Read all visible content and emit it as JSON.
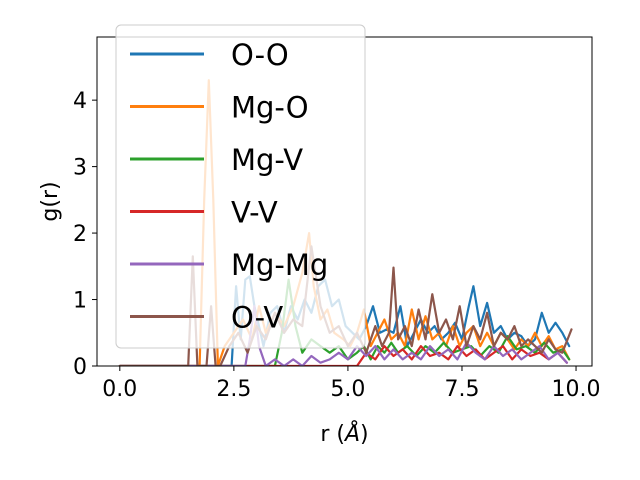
{
  "chart_data": {
    "type": "line",
    "xlabel": "r (",
    "xlabel_unit": "Å",
    "xlabel_close": ")",
    "ylabel": "g(r)",
    "xlim": [
      -0.5,
      10.35
    ],
    "ylim": [
      0,
      4.95
    ],
    "x_ticks": [
      {
        "value": 0.0,
        "label": "0.0"
      },
      {
        "value": 2.5,
        "label": "2.5"
      },
      {
        "value": 5.0,
        "label": "5.0"
      },
      {
        "value": 7.5,
        "label": "7.5"
      },
      {
        "value": 10.0,
        "label": "10.0"
      }
    ],
    "y_ticks": [
      {
        "value": 0,
        "label": "0"
      },
      {
        "value": 1,
        "label": "1"
      },
      {
        "value": 2,
        "label": "2"
      },
      {
        "value": 3,
        "label": "3"
      },
      {
        "value": 4,
        "label": "4"
      }
    ],
    "legend_position": "upper-left",
    "series": [
      {
        "name": "O-O",
        "color": "#1f77b4",
        "x": [
          0.0,
          2.3,
          2.45,
          2.55,
          2.65,
          2.75,
          2.85,
          2.95,
          3.05,
          3.15,
          3.3,
          3.45,
          3.6,
          3.75,
          3.9,
          4.05,
          4.2,
          4.35,
          4.5,
          4.65,
          4.8,
          4.95,
          5.1,
          5.25,
          5.4,
          5.55,
          5.7,
          5.85,
          6.0,
          6.15,
          6.3,
          6.45,
          6.6,
          6.75,
          6.9,
          7.05,
          7.2,
          7.35,
          7.5,
          7.65,
          7.75,
          7.9,
          8.05,
          8.2,
          8.35,
          8.5,
          8.65,
          8.8,
          8.95,
          9.1,
          9.25,
          9.4,
          9.55,
          9.7,
          9.85
        ],
        "y": [
          0,
          0,
          0,
          1.2,
          0.4,
          1.3,
          1.35,
          0.9,
          0.6,
          0.3,
          0.8,
          0.9,
          0.5,
          0.9,
          0.7,
          1.0,
          0.8,
          1.2,
          1.3,
          0.9,
          1.0,
          0.6,
          0.5,
          0.4,
          0.6,
          0.9,
          0.5,
          0.55,
          0.5,
          0.9,
          0.3,
          0.5,
          0.7,
          0.5,
          0.6,
          0.4,
          0.5,
          0.65,
          0.4,
          0.9,
          1.2,
          0.6,
          0.95,
          0.5,
          0.6,
          0.4,
          0.5,
          0.45,
          0.3,
          0.4,
          0.8,
          0.5,
          0.65,
          0.5,
          0.3
        ]
      },
      {
        "name": "Mg-O",
        "color": "#ff7f0e",
        "x": [
          0.0,
          1.75,
          1.85,
          1.95,
          2.05,
          2.15,
          2.3,
          2.5,
          2.7,
          2.9,
          3.05,
          3.2,
          3.4,
          3.6,
          3.8,
          4.0,
          4.15,
          4.25,
          4.4,
          4.55,
          4.7,
          4.9,
          5.05,
          5.2,
          5.35,
          5.5,
          5.65,
          5.8,
          5.95,
          6.1,
          6.25,
          6.4,
          6.55,
          6.7,
          6.85,
          7.0,
          7.15,
          7.3,
          7.45,
          7.6,
          7.75,
          7.9,
          8.05,
          8.2,
          8.35,
          8.5,
          8.65,
          8.8,
          8.95,
          9.1,
          9.25,
          9.4,
          9.55,
          9.7,
          9.85
        ],
        "y": [
          0,
          0,
          2.5,
          4.3,
          2.5,
          0,
          0.3,
          0.5,
          0.7,
          0.4,
          0.9,
          0.5,
          0.8,
          0.6,
          0.9,
          1.4,
          2.0,
          1.2,
          0.7,
          0.85,
          0.5,
          0.4,
          0.3,
          0.5,
          0.85,
          0.3,
          0.5,
          0.7,
          0.4,
          0.5,
          0.3,
          0.85,
          0.4,
          0.75,
          0.4,
          0.5,
          0.3,
          0.6,
          0.3,
          0.5,
          0.6,
          0.3,
          0.5,
          0.3,
          0.5,
          0.4,
          0.25,
          0.4,
          0.3,
          0.5,
          0.3,
          0.45,
          0.25,
          0.3,
          0.1
        ]
      },
      {
        "name": "Mg-V",
        "color": "#2ca02c",
        "x": [
          0.0,
          3.4,
          3.55,
          3.7,
          3.85,
          4.0,
          4.2,
          4.4,
          4.6,
          4.8,
          5.0,
          5.2,
          5.35,
          5.5,
          5.65,
          5.8,
          5.95,
          6.1,
          6.3,
          6.5,
          6.7,
          6.9,
          7.1,
          7.3,
          7.5,
          7.7,
          7.9,
          8.1,
          8.3,
          8.5,
          8.7,
          8.9,
          9.1,
          9.3,
          9.5,
          9.7,
          9.85
        ],
        "y": [
          0,
          0,
          0.5,
          1.3,
          0.6,
          0.2,
          0.4,
          0.3,
          0.2,
          0.3,
          0.1,
          0.2,
          0.3,
          0.1,
          0.3,
          0.2,
          0.35,
          0.2,
          0.3,
          0.15,
          0.3,
          0.2,
          0.35,
          0.2,
          0.25,
          0.3,
          0.15,
          0.3,
          0.2,
          0.45,
          0.25,
          0.3,
          0.2,
          0.35,
          0.2,
          0.25,
          0.1
        ]
      },
      {
        "name": "V-V",
        "color": "#d62728",
        "x": [
          0.0,
          5.2,
          5.4,
          5.6,
          5.8,
          6.0,
          6.2,
          6.4,
          6.6,
          6.8,
          7.0,
          7.2,
          7.4,
          7.6,
          7.8,
          8.0,
          8.2,
          8.4,
          8.6,
          8.8,
          9.0,
          9.2,
          9.4,
          9.6,
          9.8
        ],
        "y": [
          0,
          0,
          0.2,
          0.1,
          0.3,
          0.15,
          0.25,
          0.1,
          0.3,
          0.15,
          0.2,
          0.1,
          0.3,
          0.15,
          0.25,
          0.1,
          0.2,
          0.3,
          0.1,
          0.25,
          0.15,
          0.2,
          0.1,
          0.2,
          0.05
        ]
      },
      {
        "name": "Mg-Mg",
        "color": "#9467bd",
        "x": [
          0.0,
          2.75,
          2.85,
          2.95,
          3.05,
          3.2,
          3.4,
          3.6,
          3.8,
          4.0,
          4.2,
          4.4,
          4.6,
          4.8,
          5.0,
          5.2,
          5.4,
          5.6,
          5.8,
          6.0,
          6.2,
          6.4,
          6.6,
          6.8,
          7.0,
          7.2,
          7.4,
          7.6,
          7.8,
          8.0,
          8.2,
          8.4,
          8.6,
          8.8,
          9.0,
          9.2,
          9.4,
          9.6,
          9.8
        ],
        "y": [
          0,
          0,
          0.4,
          0.9,
          0.3,
          0,
          0.1,
          0,
          0.1,
          0,
          0.15,
          0.05,
          0.1,
          0.2,
          0.1,
          0.3,
          0.15,
          0.3,
          0.1,
          0.25,
          0.1,
          0.2,
          0.1,
          0.3,
          0.15,
          0.25,
          0.1,
          0.35,
          0.2,
          0.1,
          0.3,
          0.15,
          0.25,
          0.1,
          0.2,
          0.3,
          0.1,
          0.2,
          0.05
        ]
      },
      {
        "name": "O-V",
        "color": "#8c564b",
        "x": [
          0.0,
          1.5,
          1.6,
          1.7,
          1.8,
          1.9,
          2.0,
          2.1,
          2.2,
          2.4,
          2.6,
          2.8,
          3.0,
          3.2,
          3.4,
          3.6,
          3.8,
          4.0,
          4.2,
          4.4,
          4.6,
          4.8,
          5.0,
          5.2,
          5.4,
          5.6,
          5.75,
          5.9,
          6.0,
          6.1,
          6.25,
          6.4,
          6.55,
          6.7,
          6.85,
          7.0,
          7.15,
          7.3,
          7.45,
          7.6,
          7.75,
          7.9,
          8.05,
          8.2,
          8.35,
          8.5,
          8.65,
          8.8,
          8.95,
          9.1,
          9.25,
          9.4,
          9.55,
          9.7,
          9.9
        ],
        "y": [
          0,
          0,
          1.65,
          0,
          0,
          0,
          0.9,
          0,
          0,
          0.3,
          0.5,
          0.2,
          0.6,
          0.4,
          0.8,
          0.5,
          0.7,
          0.6,
          1.8,
          0.9,
          0.5,
          0.6,
          0.3,
          0.5,
          0.2,
          0.6,
          0.3,
          0.5,
          1.48,
          0.4,
          0.6,
          0.3,
          0.85,
          0.4,
          1.08,
          0.5,
          0.7,
          0.4,
          0.9,
          0.3,
          0.6,
          0.4,
          0.8,
          0.3,
          0.5,
          0.4,
          0.6,
          0.3,
          0.4,
          0.3,
          0.2,
          0.4,
          0.25,
          0.2,
          0.55
        ]
      }
    ]
  }
}
